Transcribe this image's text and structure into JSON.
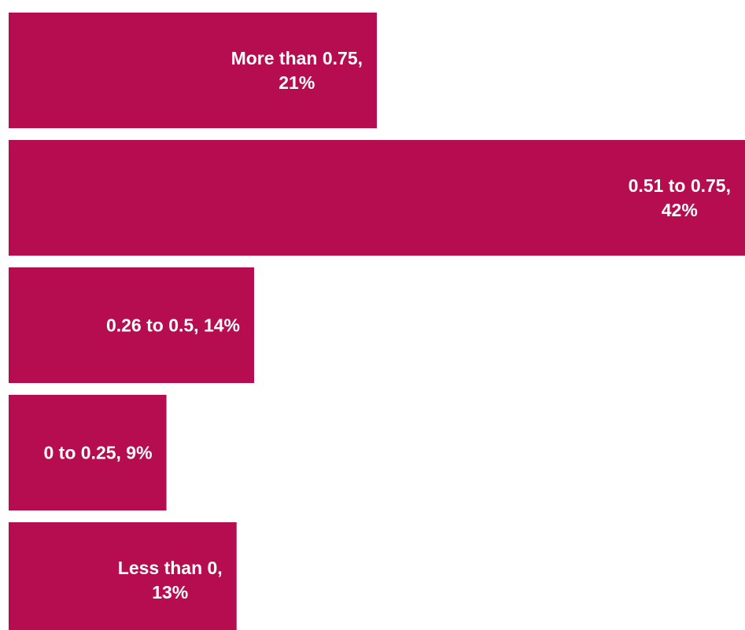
{
  "chart_data": {
    "type": "bar",
    "orientation": "horizontal",
    "title": "",
    "xlabel": "",
    "ylabel": "",
    "grid": false,
    "legend": "none",
    "bar_color": "#B50D4F",
    "categories": [
      "More than 0.75",
      "0.51 to 0.75",
      "0.26 to 0.5",
      "0 to 0.25",
      "Less than 0"
    ],
    "values": [
      21,
      42,
      14,
      9,
      13
    ],
    "unit": "%",
    "xlim": [
      0,
      42
    ],
    "data_labels": [
      [
        "More than 0.75,",
        "21%"
      ],
      [
        "0.51 to 0.75,",
        "42%"
      ],
      [
        "0.26 to 0.5, 14%"
      ],
      [
        "0 to 0.25, 9%"
      ],
      [
        "Less than 0,",
        "13%"
      ]
    ]
  }
}
